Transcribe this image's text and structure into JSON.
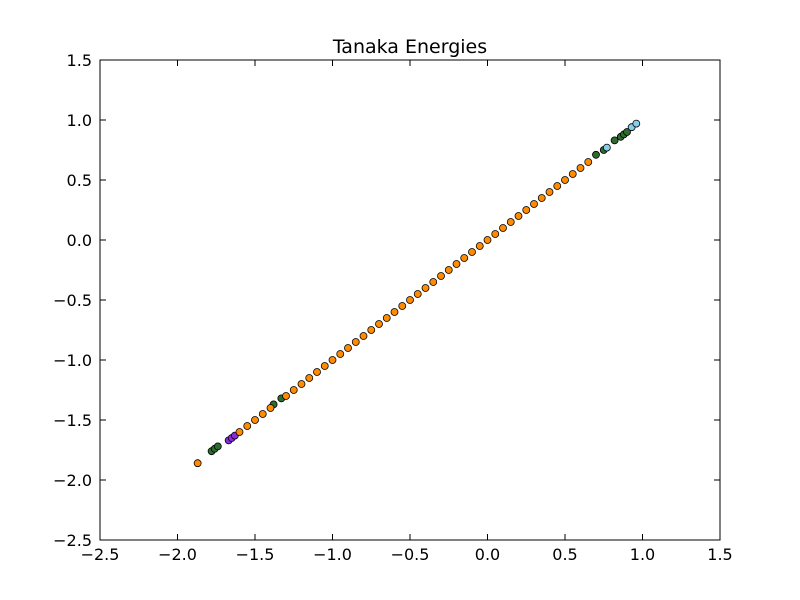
{
  "chart_data": {
    "type": "scatter",
    "title": "Tanaka Energies",
    "xlabel": "",
    "ylabel": "",
    "xlim": [
      -2.5,
      1.5
    ],
    "ylim": [
      -2.5,
      1.5
    ],
    "x_ticks": [
      -2.5,
      -2.0,
      -1.5,
      -1.0,
      -0.5,
      0.0,
      0.5,
      1.0,
      1.5
    ],
    "y_ticks": [
      -2.5,
      -2.0,
      -1.5,
      -1.0,
      -0.5,
      0.0,
      0.5,
      1.0,
      1.5
    ],
    "x_tick_labels": [
      "−2.5",
      "−2.0",
      "−1.5",
      "−1.0",
      "−0.5",
      "0.0",
      "0.5",
      "1.0",
      "1.5"
    ],
    "y_tick_labels": [
      "−2.5",
      "−2.0",
      "−1.5",
      "−1.0",
      "−0.5",
      "0.0",
      "0.5",
      "1.0",
      "1.5"
    ],
    "grid": false,
    "legend": "none",
    "series": [
      {
        "color": "#2e6b2e",
        "points": [
          [
            -1.78,
            -1.76
          ],
          [
            -1.76,
            -1.74
          ],
          [
            -1.74,
            -1.72
          ],
          [
            -1.38,
            -1.37
          ],
          [
            -1.33,
            -1.32
          ],
          [
            0.7,
            0.71
          ],
          [
            0.75,
            0.75
          ],
          [
            0.82,
            0.83
          ],
          [
            0.86,
            0.86
          ],
          [
            0.88,
            0.88
          ],
          [
            0.9,
            0.9
          ]
        ]
      },
      {
        "color": "#8a2be2",
        "points": [
          [
            -1.67,
            -1.67
          ],
          [
            -1.65,
            -1.65
          ],
          [
            -1.63,
            -1.63
          ]
        ]
      },
      {
        "color": "#87ceeb",
        "points": [
          [
            0.77,
            0.77
          ],
          [
            0.93,
            0.94
          ],
          [
            0.96,
            0.97
          ]
        ]
      },
      {
        "color": "#ff8c00",
        "points": [
          [
            -1.87,
            -1.86
          ],
          [
            -1.6,
            -1.6
          ],
          [
            -1.55,
            -1.55
          ],
          [
            -1.5,
            -1.5
          ],
          [
            -1.45,
            -1.45
          ],
          [
            -1.4,
            -1.4
          ],
          [
            -1.3,
            -1.3
          ],
          [
            -1.25,
            -1.25
          ],
          [
            -1.2,
            -1.2
          ],
          [
            -1.15,
            -1.15
          ],
          [
            -1.1,
            -1.1
          ],
          [
            -1.05,
            -1.05
          ],
          [
            -1.0,
            -1.0
          ],
          [
            -0.95,
            -0.95
          ],
          [
            -0.9,
            -0.9
          ],
          [
            -0.85,
            -0.85
          ],
          [
            -0.8,
            -0.8
          ],
          [
            -0.75,
            -0.75
          ],
          [
            -0.7,
            -0.7
          ],
          [
            -0.65,
            -0.65
          ],
          [
            -0.6,
            -0.6
          ],
          [
            -0.55,
            -0.55
          ],
          [
            -0.5,
            -0.5
          ],
          [
            -0.45,
            -0.45
          ],
          [
            -0.4,
            -0.4
          ],
          [
            -0.35,
            -0.35
          ],
          [
            -0.3,
            -0.3
          ],
          [
            -0.25,
            -0.25
          ],
          [
            -0.2,
            -0.2
          ],
          [
            -0.15,
            -0.15
          ],
          [
            -0.1,
            -0.1
          ],
          [
            -0.05,
            -0.05
          ],
          [
            0.0,
            0.0
          ],
          [
            0.05,
            0.05
          ],
          [
            0.1,
            0.1
          ],
          [
            0.15,
            0.15
          ],
          [
            0.2,
            0.2
          ],
          [
            0.25,
            0.25
          ],
          [
            0.3,
            0.3
          ],
          [
            0.35,
            0.35
          ],
          [
            0.4,
            0.4
          ],
          [
            0.45,
            0.45
          ],
          [
            0.5,
            0.5
          ],
          [
            0.55,
            0.55
          ],
          [
            0.6,
            0.6
          ],
          [
            0.65,
            0.65
          ]
        ]
      }
    ]
  }
}
